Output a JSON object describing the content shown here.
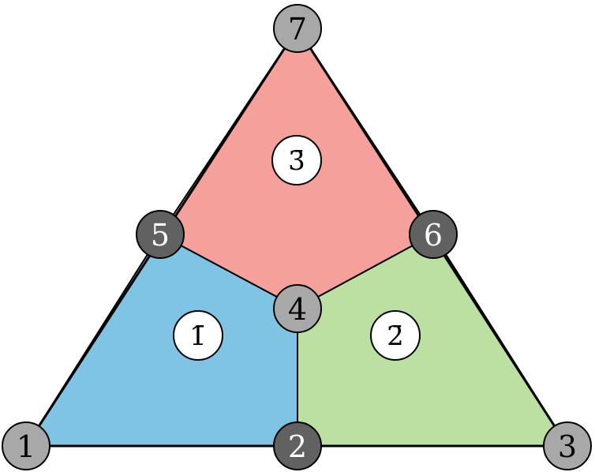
{
  "diagram": {
    "regions": [
      {
        "id": "region-1",
        "label": "1̄",
        "color": "#7fc4e4"
      },
      {
        "id": "region-2",
        "label": "2̄",
        "color": "#bcdfa2"
      },
      {
        "id": "region-3",
        "label": "3̄",
        "color": "#f5a09a"
      }
    ],
    "nodes": [
      {
        "id": "1",
        "label": "1",
        "shade": "light"
      },
      {
        "id": "2",
        "label": "2",
        "shade": "dark"
      },
      {
        "id": "3",
        "label": "3",
        "shade": "light"
      },
      {
        "id": "4",
        "label": "4",
        "shade": "light"
      },
      {
        "id": "5",
        "label": "5",
        "shade": "dark"
      },
      {
        "id": "6",
        "label": "6",
        "shade": "dark"
      },
      {
        "id": "7",
        "label": "7",
        "shade": "light"
      }
    ],
    "colors": {
      "node_light": "#a8a8a8",
      "node_dark": "#616161",
      "node_light_text": "#000000",
      "node_dark_text": "#ffffff",
      "stroke": "#000000",
      "label_bg": "#ffffff"
    }
  }
}
